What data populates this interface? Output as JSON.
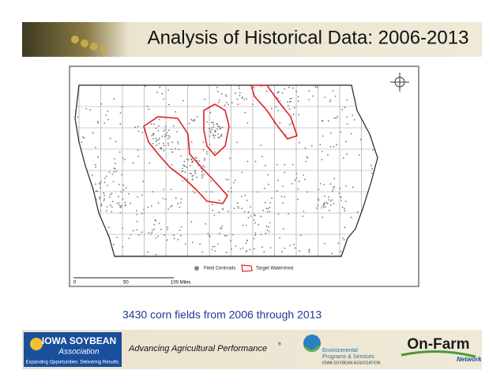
{
  "header": {
    "title": "Analysis of Historical Data: 2006-2013"
  },
  "map": {
    "legend": [
      "Field Centroids",
      "Target Watershed"
    ],
    "scale": [
      "0",
      "50",
      "100 Miles"
    ],
    "caption": "3430 corn fields from 2006 through 2013"
  },
  "footer": {
    "isa": {
      "name": "IOWA SOYBEAN",
      "sub": "Association",
      "tagline": "Expanding Opportunities. Delivering Results."
    },
    "slogan": "Advancing Agricultural Performance",
    "reg": "®",
    "eps": [
      "Environmental",
      "Programs & Services",
      "IOWA SOYBEAN ASSOCIATION"
    ],
    "ofn": {
      "name": "On-Farm",
      "sub": "Network"
    }
  }
}
